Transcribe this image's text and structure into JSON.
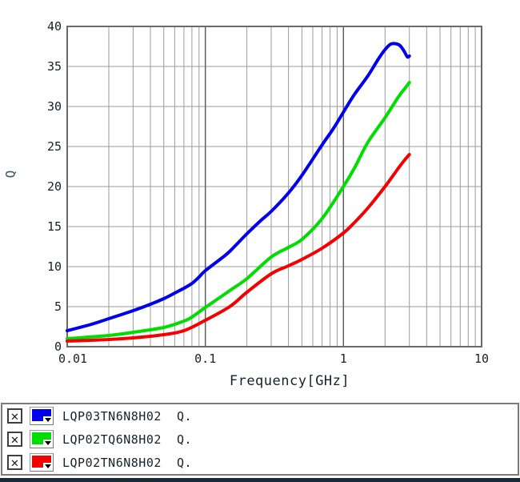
{
  "chart_data": {
    "type": "line",
    "title": "",
    "xlabel": "Frequency[GHz]",
    "ylabel": "Q",
    "x_scale": "log",
    "x_range": [
      0.01,
      10
    ],
    "y_range": [
      0,
      40
    ],
    "grid": "on",
    "legend_position": "bottom-panel",
    "x_ticks": [
      {
        "value": 0.01,
        "label": "0.01"
      },
      {
        "value": 0.1,
        "label": "0.1"
      },
      {
        "value": 1,
        "label": "1"
      },
      {
        "value": 10,
        "label": "10"
      }
    ],
    "y_ticks": [
      {
        "value": 40,
        "label": "40"
      },
      {
        "value": 35,
        "label": "35"
      },
      {
        "value": 30,
        "label": "30"
      },
      {
        "value": 25,
        "label": "25"
      },
      {
        "value": 20,
        "label": "20"
      },
      {
        "value": 15,
        "label": "15"
      },
      {
        "value": 10,
        "label": "10"
      },
      {
        "value": 5,
        "label": "5"
      },
      {
        "value": 0,
        "label": "0"
      }
    ],
    "colors": {
      "grid_minor": "#9b9b9b",
      "grid_decade": "#5f5f5f",
      "border": "#6a6a6a",
      "text": "#15222c"
    },
    "series": [
      {
        "name": "LQP03TN6N8H02 Q.",
        "color": "#0000ee",
        "points": [
          [
            0.01,
            2.0
          ],
          [
            0.015,
            2.8
          ],
          [
            0.02,
            3.5
          ],
          [
            0.03,
            4.5
          ],
          [
            0.04,
            5.3
          ],
          [
            0.05,
            6.0
          ],
          [
            0.06,
            6.7
          ],
          [
            0.07,
            7.3
          ],
          [
            0.08,
            7.9
          ],
          [
            0.09,
            8.7
          ],
          [
            0.1,
            9.5
          ],
          [
            0.13,
            11.0
          ],
          [
            0.15,
            11.9
          ],
          [
            0.2,
            14.1
          ],
          [
            0.25,
            15.7
          ],
          [
            0.3,
            16.9
          ],
          [
            0.4,
            19.2
          ],
          [
            0.5,
            21.4
          ],
          [
            0.7,
            25.2
          ],
          [
            0.85,
            27.3
          ],
          [
            1.0,
            29.3
          ],
          [
            1.2,
            31.5
          ],
          [
            1.5,
            33.8
          ],
          [
            1.8,
            36.0
          ],
          [
            2.0,
            37.1
          ],
          [
            2.2,
            37.8
          ],
          [
            2.45,
            37.8
          ],
          [
            2.6,
            37.5
          ],
          [
            2.75,
            36.9
          ],
          [
            2.9,
            36.2
          ],
          [
            3.0,
            36.3
          ]
        ]
      },
      {
        "name": "LQP02TQ6N8H02 Q.",
        "color": "#00dd00",
        "points": [
          [
            0.01,
            1.0
          ],
          [
            0.02,
            1.4
          ],
          [
            0.03,
            1.8
          ],
          [
            0.05,
            2.4
          ],
          [
            0.07,
            3.2
          ],
          [
            0.08,
            3.7
          ],
          [
            0.1,
            4.9
          ],
          [
            0.15,
            7.0
          ],
          [
            0.2,
            8.5
          ],
          [
            0.3,
            11.2
          ],
          [
            0.4,
            12.4
          ],
          [
            0.5,
            13.4
          ],
          [
            0.7,
            16.0
          ],
          [
            1.0,
            20.0
          ],
          [
            1.2,
            22.3
          ],
          [
            1.5,
            25.5
          ],
          [
            2.0,
            28.6
          ],
          [
            2.5,
            31.2
          ],
          [
            2.8,
            32.3
          ],
          [
            3.0,
            33.0
          ]
        ]
      },
      {
        "name": "LQP02TN6N8H02 Q.",
        "color": "#f40000",
        "points": [
          [
            0.01,
            0.7
          ],
          [
            0.02,
            0.9
          ],
          [
            0.03,
            1.1
          ],
          [
            0.05,
            1.5
          ],
          [
            0.07,
            2.0
          ],
          [
            0.1,
            3.3
          ],
          [
            0.15,
            5.0
          ],
          [
            0.2,
            6.8
          ],
          [
            0.3,
            9.1
          ],
          [
            0.4,
            10.1
          ],
          [
            0.5,
            10.9
          ],
          [
            0.7,
            12.3
          ],
          [
            1.0,
            14.2
          ],
          [
            1.2,
            15.5
          ],
          [
            1.5,
            17.3
          ],
          [
            2.0,
            20.0
          ],
          [
            2.5,
            22.3
          ],
          [
            2.8,
            23.4
          ],
          [
            3.0,
            24.0
          ]
        ]
      }
    ]
  },
  "axis": {
    "xlabel": "Frequency[GHz]",
    "ylabel": "Q"
  },
  "legend": {
    "check_glyph": "✕",
    "rows": [
      {
        "checked": true,
        "swatch_color": "#0000ee",
        "label": "LQP03TN6N8H02  Q."
      },
      {
        "checked": true,
        "swatch_color": "#00dd00",
        "label": "LQP02TQ6N8H02  Q."
      },
      {
        "checked": true,
        "swatch_color": "#f40000",
        "label": "LQP02TN6N8H02  Q."
      }
    ]
  }
}
